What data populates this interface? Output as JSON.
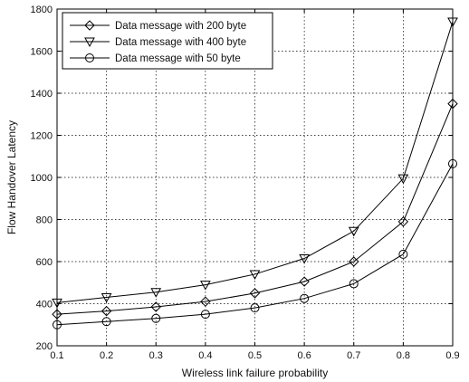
{
  "chart_data": {
    "type": "line",
    "title": "",
    "xlabel": "Wireless link failure probability",
    "ylabel": "Flow Handover Latency",
    "xlim": [
      0.1,
      0.9
    ],
    "ylim": [
      200,
      1800
    ],
    "x": [
      0.1,
      0.2,
      0.3,
      0.4,
      0.5,
      0.6,
      0.7,
      0.8,
      0.9
    ],
    "x_ticks": [
      "0.1",
      "0.2",
      "0.3",
      "0.4",
      "0.5",
      "0.6",
      "0.7",
      "0.8",
      "0.9"
    ],
    "y_ticks": [
      "200",
      "400",
      "600",
      "800",
      "1000",
      "1200",
      "1400",
      "1600",
      "1800"
    ],
    "grid": true,
    "legend_position": "top-left",
    "series": [
      {
        "name": "Data message with 200 byte",
        "marker": "diamond",
        "values": [
          350,
          365,
          385,
          410,
          450,
          505,
          600,
          790,
          1350
        ]
      },
      {
        "name": "Data message with 400 byte",
        "marker": "triangle-down",
        "values": [
          405,
          430,
          455,
          490,
          540,
          615,
          745,
          995,
          1740
        ]
      },
      {
        "name": "Data message with 50 byte",
        "marker": "circle",
        "values": [
          300,
          315,
          330,
          350,
          380,
          425,
          495,
          635,
          1065
        ]
      }
    ],
    "colors": {
      "line": "#000000",
      "grid": "#000000",
      "background": "#ffffff"
    }
  }
}
